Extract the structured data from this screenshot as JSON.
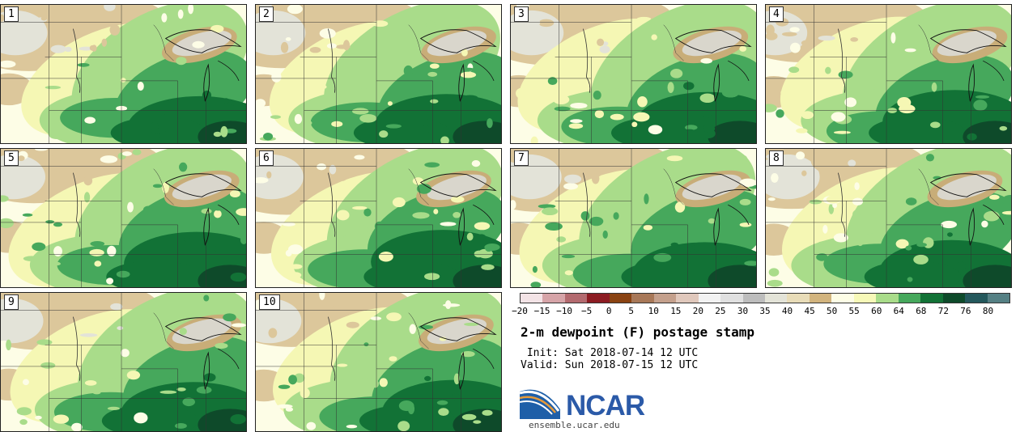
{
  "panels": [
    {
      "label": "1",
      "variant": 0
    },
    {
      "label": "2",
      "variant": 1
    },
    {
      "label": "3",
      "variant": 2
    },
    {
      "label": "4",
      "variant": 3
    },
    {
      "label": "5",
      "variant": 4
    },
    {
      "label": "6",
      "variant": 5
    },
    {
      "label": "7",
      "variant": 6
    },
    {
      "label": "8",
      "variant": 7
    },
    {
      "label": "9",
      "variant": 8
    },
    {
      "label": "10",
      "variant": 9
    }
  ],
  "colorbar": {
    "colors": [
      "#f3e3e6",
      "#d6a4a8",
      "#b36a6f",
      "#8c1c22",
      "#8a4312",
      "#a87858",
      "#c4a08c",
      "#e0c8bc",
      "#f2f2f2",
      "#e0e0e0",
      "#bdbdbd",
      "#e3e3d8",
      "#e8dcb8",
      "#d2b47e",
      "#fdfde6",
      "#f7f9b8",
      "#a9dc8a",
      "#46a85c",
      "#127236",
      "#0e4a2a",
      "#24585c",
      "#558084"
    ],
    "ticks": [
      "−20",
      "−15",
      "−10",
      "−5",
      "0",
      "5",
      "10",
      "15",
      "20",
      "25",
      "30",
      "35",
      "40",
      "45",
      "50",
      "55",
      "60",
      "64",
      "68",
      "72",
      "76",
      "80"
    ]
  },
  "title": "2-m dewpoint (F) postage stamp",
  "init": " Init: Sat 2018-07-14 12 UTC",
  "valid": "Valid: Sun 2018-07-15 12 UTC",
  "logo": {
    "text": "NCAR",
    "site": "ensemble.ucar.edu",
    "color": "#2b5aa8"
  }
}
